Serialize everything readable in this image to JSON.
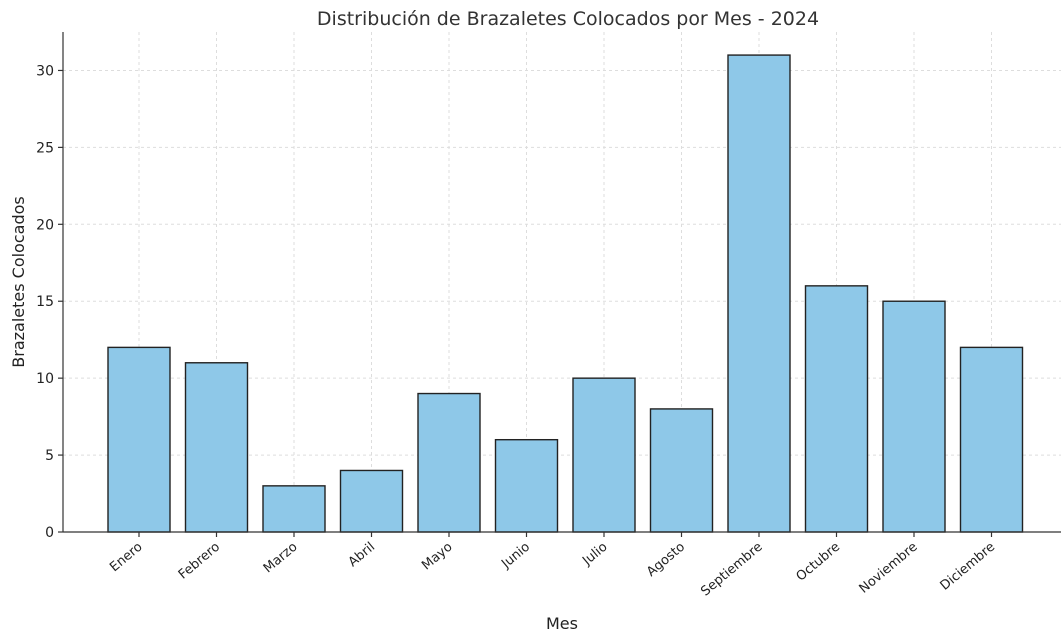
{
  "chart_data": {
    "type": "bar",
    "title": "Distribución de Brazaletes Colocados por Mes - 2024",
    "xlabel": "Mes",
    "ylabel": "Brazaletes Colocados",
    "categories": [
      "Enero",
      "Febrero",
      "Marzo",
      "Abril",
      "Mayo",
      "Junio",
      "Julio",
      "Agosto",
      "Septiembre",
      "Octubre",
      "Noviembre",
      "Diciembre"
    ],
    "values": [
      12,
      11,
      3,
      4,
      9,
      6,
      10,
      8,
      31,
      16,
      15,
      12
    ],
    "ylim": [
      0,
      32.5
    ],
    "yticks": [
      0,
      5,
      10,
      15,
      20,
      25,
      30
    ],
    "grid": true,
    "bar_color": "#8ec8e8",
    "edge_color": "#222222"
  }
}
